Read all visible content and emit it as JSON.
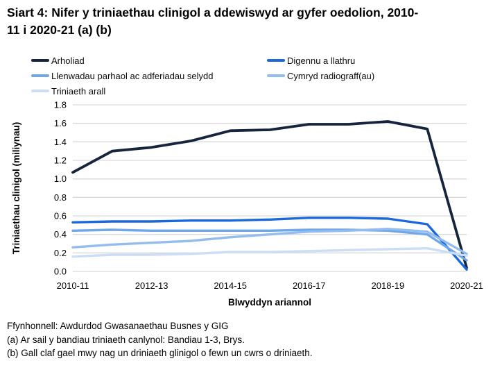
{
  "title": "Siart 4: Nifer y triniaethau clinigol a ddewiswyd ar gyfer oedolion, 2010-11 i 2020-21 (a) (b)",
  "footnotes": {
    "source": "Ffynhonnell: Awdurdod Gwasanaethau Busnes y GIG",
    "note_a": "(a) Ar sail y bandiau triniaeth canlynol: Bandiau 1-3, Brys.",
    "note_b": "(b) Gall claf gael mwy nag un driniaeth glinigol o fewn un cwrs o driniaeth."
  },
  "colors": {
    "grid": "#d9d9d9",
    "text": "#000000"
  },
  "chart_data": {
    "type": "line",
    "title": "Siart 4: Nifer y triniaethau clinigol a ddewiswyd ar gyfer oedolion, 2010-11 i 2020-21 (a) (b)",
    "x": [
      "2010-11",
      "2011-12",
      "2012-13",
      "2013-14",
      "2014-15",
      "2015-16",
      "2016-17",
      "2017-18",
      "2018-19",
      "2019-20",
      "2020-21"
    ],
    "x_ticks_shown": [
      "2010-11",
      "2012-13",
      "2014-15",
      "2016-17",
      "2018-19",
      "2020-21"
    ],
    "xlabel": "Blwyddyn ariannol",
    "ylabel": "Triniaethau clinigol (miliynau)",
    "units": "miliynau (millions)",
    "ylim": [
      0,
      1.8
    ],
    "y_tick_step": 0.2,
    "grid": "horizontal",
    "legend_position": "top-left, two columns",
    "series": [
      {
        "name": "Arholiad",
        "color": "#17243e",
        "values": [
          1.07,
          1.3,
          1.34,
          1.41,
          1.52,
          1.53,
          1.59,
          1.59,
          1.62,
          1.54,
          0.04
        ]
      },
      {
        "name": "Digennu a llathru",
        "color": "#1a68da",
        "values": [
          0.53,
          0.54,
          0.54,
          0.55,
          0.55,
          0.56,
          0.58,
          0.58,
          0.57,
          0.51,
          0.02
        ]
      },
      {
        "name": "Llenwadau parhaol ac adferiadau selydd",
        "color": "#70a7e8",
        "values": [
          0.44,
          0.45,
          0.44,
          0.44,
          0.44,
          0.44,
          0.45,
          0.45,
          0.44,
          0.4,
          0.12
        ]
      },
      {
        "name": "Cymryd radiograff(au)",
        "color": "#94bced",
        "values": [
          0.26,
          0.29,
          0.31,
          0.33,
          0.37,
          0.4,
          0.43,
          0.44,
          0.46,
          0.43,
          0.19
        ]
      },
      {
        "name": "Triniaeth arall",
        "color": "#cbdef5",
        "values": [
          0.16,
          0.18,
          0.18,
          0.19,
          0.21,
          0.21,
          0.22,
          0.23,
          0.24,
          0.25,
          0.17
        ]
      }
    ]
  }
}
